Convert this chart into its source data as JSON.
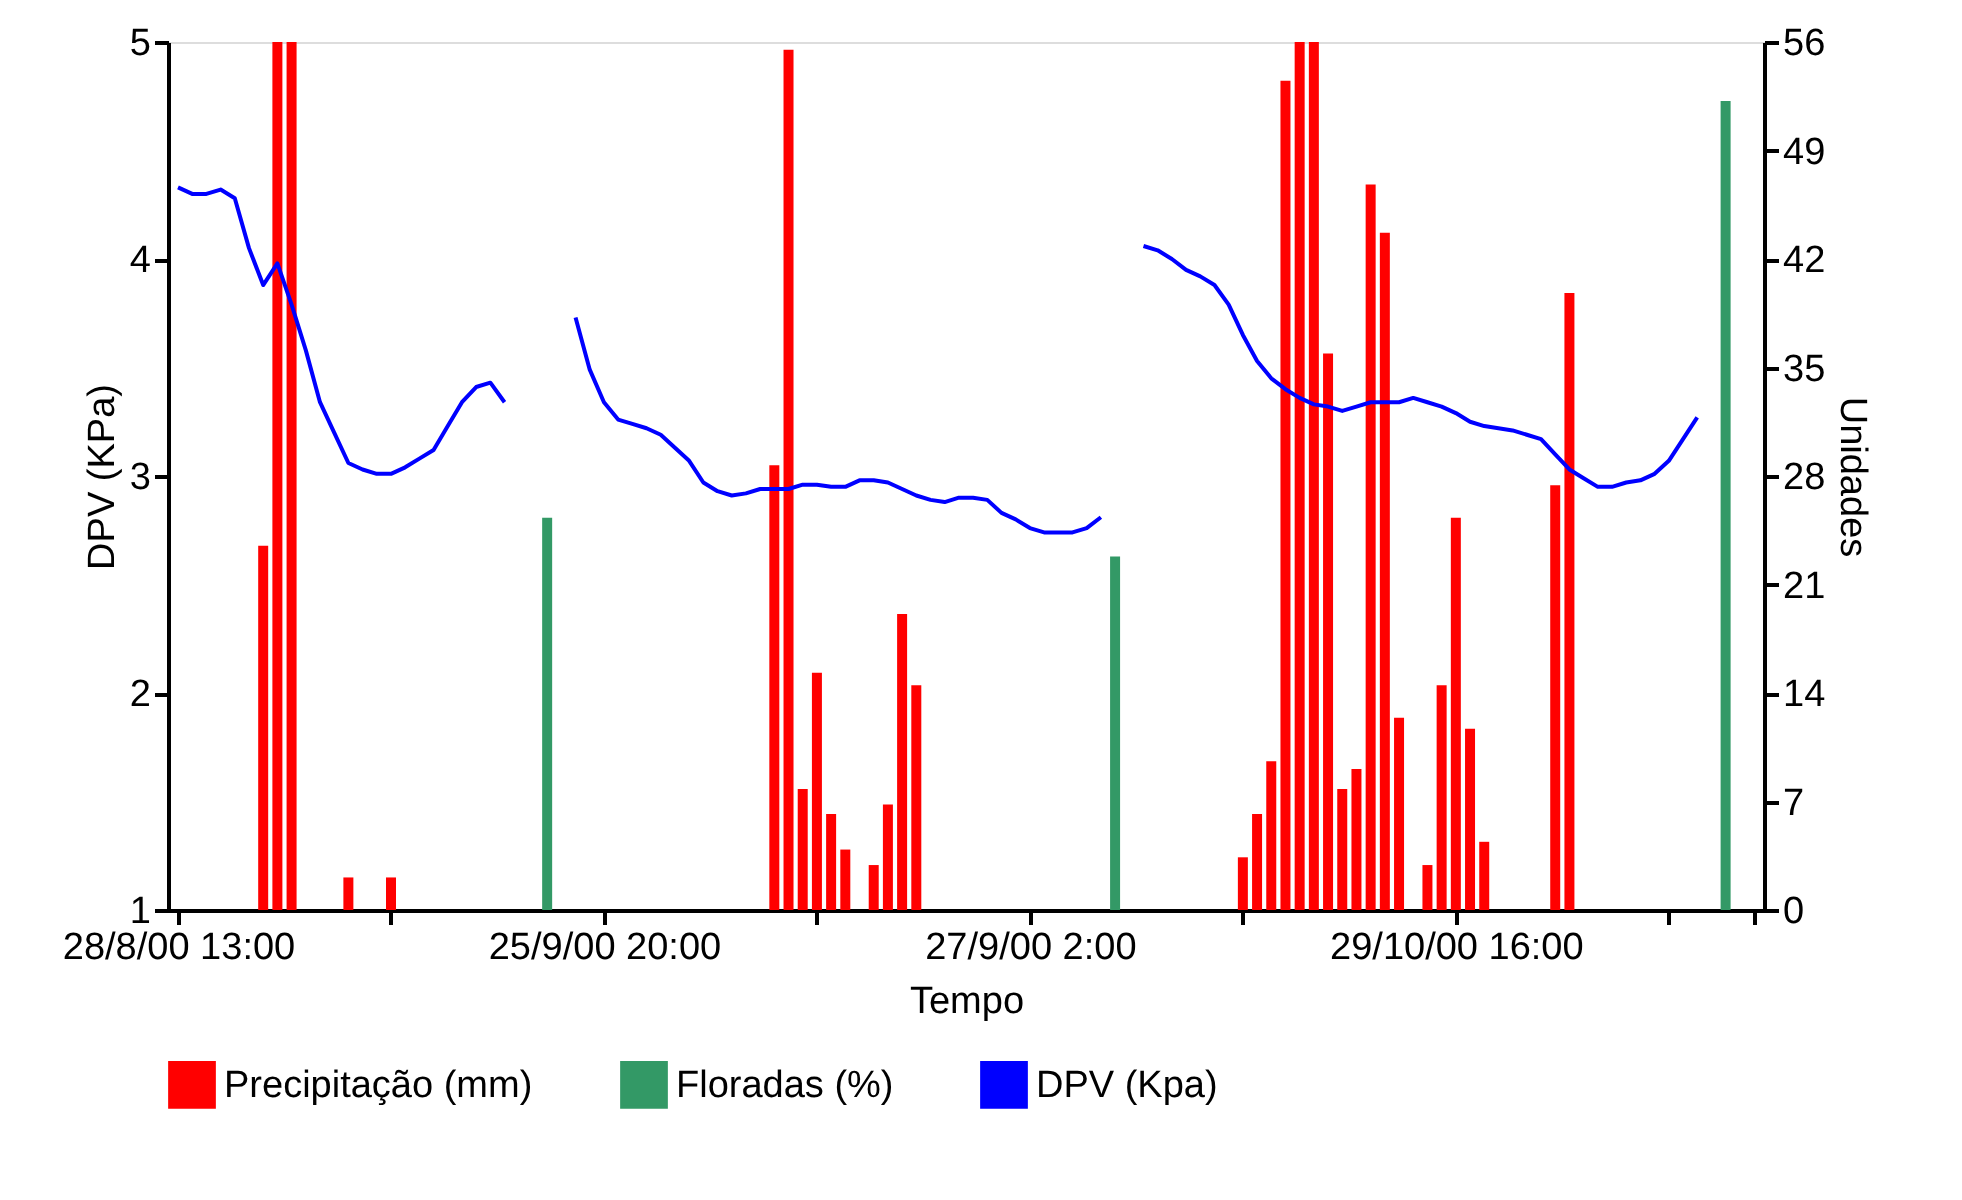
{
  "chart_data": {
    "type": "bar",
    "xlabel": "Tempo",
    "ylabel": "DPV (KPa)",
    "y2label": "Unidades",
    "categories": [
      "28/8/00 13:00",
      null,
      null,
      null,
      null,
      null,
      null,
      null,
      null,
      null,
      null,
      null,
      null,
      null,
      null,
      null,
      null,
      null,
      null,
      null,
      null,
      null,
      null,
      null,
      null,
      null,
      null,
      null,
      null,
      null,
      "25/9/00 20:00",
      null,
      null,
      null,
      null,
      null,
      null,
      null,
      null,
      null,
      null,
      null,
      null,
      null,
      null,
      null,
      null,
      null,
      null,
      null,
      null,
      null,
      null,
      null,
      null,
      null,
      null,
      null,
      null,
      null,
      "27/9/00 2:00",
      null,
      null,
      null,
      null,
      null,
      null,
      null,
      null,
      null,
      null,
      null,
      null,
      null,
      null,
      null,
      null,
      null,
      null,
      null,
      null,
      null,
      null,
      null,
      null,
      null,
      null,
      null,
      null,
      null,
      "29/10/00 16:00",
      null,
      null,
      null,
      null,
      null,
      null,
      null,
      null,
      null,
      null,
      null,
      null,
      null,
      null,
      null,
      null,
      null,
      null,
      null,
      null,
      null
    ],
    "series": [
      {
        "name": "Precipitação (mm)",
        "axis": "y2",
        "color": "#ff0000",
        "values": [
          null,
          null,
          null,
          null,
          null,
          null,
          23.5,
          56,
          56,
          null,
          null,
          null,
          2.1,
          null,
          null,
          2.1,
          null,
          null,
          null,
          null,
          null,
          null,
          null,
          null,
          null,
          null,
          null,
          null,
          null,
          null,
          null,
          null,
          null,
          null,
          null,
          null,
          null,
          null,
          null,
          null,
          null,
          null,
          28.7,
          55.5,
          7.8,
          15.3,
          6.2,
          3.9,
          null,
          2.9,
          6.8,
          19.1,
          14.5,
          null,
          null,
          null,
          null,
          null,
          null,
          null,
          null,
          null,
          null,
          null,
          null,
          null,
          null,
          null,
          null,
          null,
          null,
          null,
          null,
          null,
          null,
          3.4,
          6.2,
          9.6,
          53.5,
          56,
          56,
          35.9,
          7.8,
          9.1,
          46.8,
          43.7,
          12.4,
          null,
          2.9,
          14.5,
          25.3,
          11.7,
          4.4,
          null,
          null,
          null,
          null,
          27.4,
          39.8,
          null,
          null,
          null,
          null,
          null,
          null,
          null,
          null,
          null,
          null,
          null,
          null,
          null
        ]
      },
      {
        "name": "Floradas (%)",
        "axis": "y2",
        "color": "#339966",
        "values": [
          null,
          null,
          null,
          null,
          null,
          null,
          null,
          null,
          null,
          null,
          null,
          null,
          null,
          null,
          null,
          null,
          null,
          null,
          null,
          null,
          null,
          null,
          null,
          null,
          null,
          null,
          25.3,
          null,
          null,
          null,
          null,
          null,
          null,
          null,
          null,
          null,
          null,
          null,
          null,
          null,
          null,
          null,
          null,
          null,
          null,
          null,
          null,
          null,
          null,
          null,
          null,
          null,
          null,
          null,
          null,
          null,
          null,
          null,
          null,
          null,
          null,
          null,
          null,
          null,
          null,
          null,
          22.8,
          null,
          null,
          null,
          null,
          null,
          null,
          null,
          null,
          null,
          null,
          null,
          null,
          null,
          null,
          null,
          null,
          null,
          null,
          null,
          null,
          null,
          null,
          null,
          null,
          null,
          null,
          null,
          null,
          null,
          null,
          null,
          null,
          null,
          null,
          null,
          null,
          null,
          null,
          null,
          null,
          null,
          null,
          52.2,
          null,
          null
        ]
      },
      {
        "name": "DPV (Kpa)",
        "type": "line",
        "axis": "y",
        "color": "#0000ff",
        "values": [
          4.33,
          4.3,
          4.3,
          4.32,
          4.28,
          4.05,
          3.88,
          3.98,
          3.79,
          3.58,
          3.34,
          3.2,
          3.06,
          3.03,
          3.01,
          3.01,
          3.04,
          3.08,
          3.12,
          3.23,
          3.34,
          3.41,
          3.43,
          3.34,
          null,
          null,
          null,
          null,
          3.73,
          3.49,
          3.34,
          3.26,
          3.24,
          3.22,
          3.19,
          3.13,
          3.07,
          2.97,
          2.93,
          2.91,
          2.92,
          2.94,
          2.94,
          2.94,
          2.96,
          2.96,
          2.95,
          2.95,
          2.98,
          2.98,
          2.97,
          2.94,
          2.91,
          2.89,
          2.88,
          2.9,
          2.9,
          2.89,
          2.83,
          2.8,
          2.76,
          2.74,
          2.74,
          2.74,
          2.76,
          2.81,
          null,
          null,
          4.06,
          4.04,
          4.0,
          3.95,
          3.92,
          3.88,
          3.79,
          3.65,
          3.53,
          3.45,
          3.4,
          3.36,
          3.33,
          3.32,
          3.3,
          3.32,
          3.34,
          3.34,
          3.34,
          3.36,
          3.34,
          3.32,
          3.29,
          3.25,
          3.23,
          3.22,
          3.21,
          3.19,
          3.17,
          3.1,
          3.03,
          2.99,
          2.95,
          2.95,
          2.97,
          2.98,
          3.01,
          3.07,
          3.17,
          3.27,
          null,
          null,
          null,
          null
        ]
      }
    ],
    "ylim": [
      1,
      5
    ],
    "yticks": [
      1,
      2,
      3,
      4,
      5
    ],
    "y2lim": [
      0,
      56
    ],
    "y2ticks": [
      0,
      7,
      14,
      21,
      28,
      35,
      42,
      49,
      56
    ],
    "legend": "bottom"
  }
}
